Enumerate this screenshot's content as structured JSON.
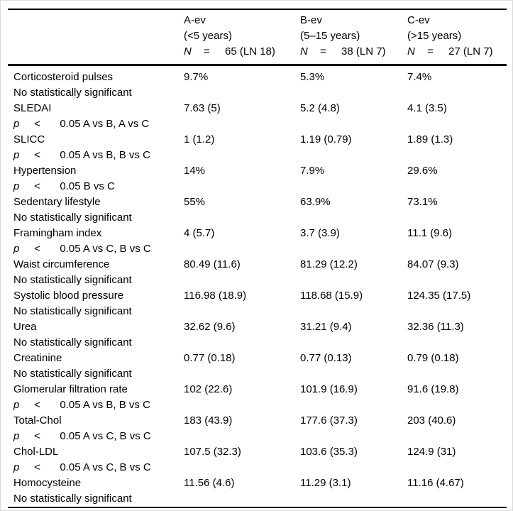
{
  "columns": [
    {
      "group": "A-ev",
      "range": "(<5 years)",
      "n": "N",
      "eq": "=",
      "n_value": "65 (LN 18)"
    },
    {
      "group": "B-ev",
      "range": "(5–15 years)",
      "n": "N",
      "eq": "=",
      "n_value": "38 (LN 7)"
    },
    {
      "group": "C-ev",
      "range": "(>15 years)",
      "n": "N",
      "eq": "=",
      "n_value": "27 (LN 7)"
    }
  ],
  "note_symbols": {
    "p": "p",
    "op": "<"
  },
  "rows": [
    {
      "label": "Corticosteroid pulses",
      "values": [
        "9.7%",
        "5.3%",
        "7.4%"
      ],
      "note_type": "ns",
      "note": "No statistically significant"
    },
    {
      "label": "SLEDAI",
      "values": [
        "7.63 (5)",
        "5.2 (4.8)",
        "4.1 (3.5)"
      ],
      "note_type": "p",
      "note": "0.05 A vs B, A vs C"
    },
    {
      "label": "SLICC",
      "values": [
        "1 (1.2)",
        "1.19 (0.79)",
        "1.89 (1.3)"
      ],
      "note_type": "p",
      "note": "0.05 A vs B, B vs C"
    },
    {
      "label": "Hypertension",
      "values": [
        "14%",
        "7.9%",
        "29.6%"
      ],
      "note_type": "p",
      "note": "0.05 B vs C"
    },
    {
      "label": "Sedentary lifestyle",
      "values": [
        "55%",
        "63.9%",
        "73.1%"
      ],
      "note_type": "ns",
      "note": "No statistically significant"
    },
    {
      "label": "Framingham index",
      "values": [
        "4 (5.7)",
        "3.7 (3.9)",
        "11.1 (9.6)"
      ],
      "note_type": "p",
      "note": "0.05 A vs C, B vs C"
    },
    {
      "label": "Waist circumference",
      "values": [
        "80.49 (11.6)",
        "81.29 (12.2)",
        "84.07 (9.3)"
      ],
      "note_type": "ns",
      "note": "No statistically significant"
    },
    {
      "label": "Systolic blood pressure",
      "values": [
        "116.98 (18.9)",
        "118.68 (15.9)",
        "124.35 (17.5)"
      ],
      "note_type": "ns",
      "note": "No statistically significant"
    },
    {
      "label": "Urea",
      "values": [
        "32.62 (9.6)",
        "31.21 (9.4)",
        "32.36 (11.3)"
      ],
      "note_type": "ns",
      "note": "No statistically significant"
    },
    {
      "label": "Creatinine",
      "values": [
        "0.77 (0.18)",
        "0.77 (0.13)",
        "0.79 (0.18)"
      ],
      "note_type": "ns",
      "note": "No statistically significant"
    },
    {
      "label": "Glomerular filtration rate",
      "values": [
        "102 (22.6)",
        "101.9 (16.9)",
        "91.6 (19.8)"
      ],
      "note_type": "p",
      "note": "0.05 A vs B, B vs C"
    },
    {
      "label": "Total-Chol",
      "values": [
        "183 (43.9)",
        "177.6 (37.3)",
        "203 (40.6)"
      ],
      "note_type": "p",
      "note": "0.05 A vs C, B vs C"
    },
    {
      "label": "Chol-LDL",
      "values": [
        "107.5 (32.3)",
        "103.6 (35.3)",
        "124.9 (31)"
      ],
      "note_type": "p",
      "note": "0.05 A vs C, B vs C"
    },
    {
      "label": "Homocysteine",
      "values": [
        "11.56 (4.6)",
        "11.29 (3.1)",
        "11.16 (4.67)"
      ],
      "note_type": "ns",
      "note": "No statistically significant"
    }
  ]
}
